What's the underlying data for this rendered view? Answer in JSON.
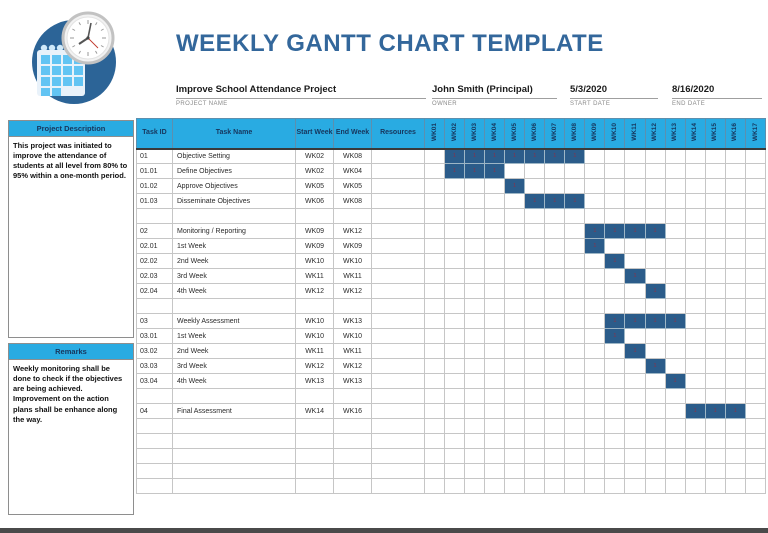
{
  "header": {
    "title": "WEEKLY GANTT CHART TEMPLATE",
    "logo": "calendar-clock-logo"
  },
  "project_info": {
    "name": {
      "value": "Improve School Attendance Project",
      "label": "PROJECT NAME"
    },
    "owner": {
      "value": "John Smith (Principal)",
      "label": "OWNER"
    },
    "start": {
      "value": "5/3/2020",
      "label": "START DATE"
    },
    "end": {
      "value": "8/16/2020",
      "label": "END DATE"
    }
  },
  "sidebar": {
    "description": {
      "title": "Project Description",
      "body": "This project was initiated to improve the attendance of students at all level from 80% to 95% within a one-month period."
    },
    "remarks": {
      "title": "Remarks",
      "body": "Weekly monitoring shall be done to check if the objectives are being achieved.\nImprovement on the action plans shall be enhance along the way."
    }
  },
  "table": {
    "headers": [
      "Task ID",
      "Task Name",
      "Start Week",
      "End Week",
      "Resources"
    ],
    "week_headers": [
      "WK01",
      "WK02",
      "WK03",
      "WK04",
      "WK05",
      "WK06",
      "WK07",
      "WK08",
      "WK09",
      "WK10",
      "WK11",
      "WK12",
      "WK13",
      "WK14",
      "WK15",
      "WK16",
      "WK17"
    ],
    "gantt_cell_value": "1",
    "rows": [
      {
        "id": "01",
        "name": "Objective Setting",
        "start": "WK02",
        "end": "WK08",
        "resources": "",
        "weeks": [
          2,
          3,
          4,
          5,
          6,
          7,
          8
        ]
      },
      {
        "id": "01.01",
        "name": "Define Objectives",
        "start": "WK02",
        "end": "WK04",
        "resources": "",
        "weeks": [
          2,
          3,
          4
        ]
      },
      {
        "id": "01.02",
        "name": "Approve Objectives",
        "start": "WK05",
        "end": "WK05",
        "resources": "",
        "weeks": [
          5
        ]
      },
      {
        "id": "01.03",
        "name": "Disseminate Objectives",
        "start": "WK06",
        "end": "WK08",
        "resources": "",
        "weeks": [
          6,
          7,
          8
        ]
      },
      {
        "id": "",
        "name": "",
        "start": "",
        "end": "",
        "resources": "",
        "weeks": []
      },
      {
        "id": "02",
        "name": "Monitoring / Reporting",
        "start": "WK09",
        "end": "WK12",
        "resources": "",
        "weeks": [
          9,
          10,
          11,
          12
        ]
      },
      {
        "id": "02.01",
        "name": "1st Week",
        "start": "WK09",
        "end": "WK09",
        "resources": "",
        "weeks": [
          9
        ]
      },
      {
        "id": "02.02",
        "name": "2nd Week",
        "start": "WK10",
        "end": "WK10",
        "resources": "",
        "weeks": [
          10
        ]
      },
      {
        "id": "02.03",
        "name": "3rd Week",
        "start": "WK11",
        "end": "WK11",
        "resources": "",
        "weeks": [
          11
        ]
      },
      {
        "id": "02.04",
        "name": "4th Week",
        "start": "WK12",
        "end": "WK12",
        "resources": "",
        "weeks": [
          12
        ]
      },
      {
        "id": "",
        "name": "",
        "start": "",
        "end": "",
        "resources": "",
        "weeks": []
      },
      {
        "id": "03",
        "name": "Weekly Assessment",
        "start": "WK10",
        "end": "WK13",
        "resources": "",
        "weeks": [
          10,
          11,
          12,
          13
        ]
      },
      {
        "id": "03.01",
        "name": "1st Week",
        "start": "WK10",
        "end": "WK10",
        "resources": "",
        "weeks": [
          10
        ]
      },
      {
        "id": "03.02",
        "name": "2nd Week",
        "start": "WK11",
        "end": "WK11",
        "resources": "",
        "weeks": [
          11
        ]
      },
      {
        "id": "03.03",
        "name": "3rd Week",
        "start": "WK12",
        "end": "WK12",
        "resources": "",
        "weeks": [
          12
        ]
      },
      {
        "id": "03.04",
        "name": "4th Week",
        "start": "WK13",
        "end": "WK13",
        "resources": "",
        "weeks": [
          13
        ]
      },
      {
        "id": "",
        "name": "",
        "start": "",
        "end": "",
        "resources": "",
        "weeks": []
      },
      {
        "id": "04",
        "name": "Final Assessment",
        "start": "WK14",
        "end": "WK16",
        "resources": "",
        "weeks": [
          14,
          15,
          16
        ]
      },
      {
        "id": "",
        "name": "",
        "start": "",
        "end": "",
        "resources": "",
        "weeks": []
      },
      {
        "id": "",
        "name": "",
        "start": "",
        "end": "",
        "resources": "",
        "weeks": []
      },
      {
        "id": "",
        "name": "",
        "start": "",
        "end": "",
        "resources": "",
        "weeks": []
      },
      {
        "id": "",
        "name": "",
        "start": "",
        "end": "",
        "resources": "",
        "weeks": []
      },
      {
        "id": "",
        "name": "",
        "start": "",
        "end": "",
        "resources": "",
        "weeks": []
      }
    ]
  },
  "colors": {
    "accent_cyan": "#29ABE2",
    "gantt_fill": "#2B5C8A",
    "title_blue": "#33679B",
    "header_text_navy": "#17365D",
    "gantt_cell_mark": "#8A3148"
  },
  "chart_data": {
    "type": "bar",
    "subtype": "gantt",
    "title": "WEEKLY GANTT CHART TEMPLATE",
    "x_categories": [
      "WK01",
      "WK02",
      "WK03",
      "WK04",
      "WK05",
      "WK06",
      "WK07",
      "WK08",
      "WK09",
      "WK10",
      "WK11",
      "WK12",
      "WK13",
      "WK14",
      "WK15",
      "WK16",
      "WK17"
    ],
    "x_range": [
      1,
      17
    ],
    "grid": true,
    "legend": false,
    "tasks": [
      {
        "id": "01",
        "name": "Objective Setting",
        "start_week": 2,
        "end_week": 8
      },
      {
        "id": "01.01",
        "name": "Define Objectives",
        "start_week": 2,
        "end_week": 4
      },
      {
        "id": "01.02",
        "name": "Approve Objectives",
        "start_week": 5,
        "end_week": 5
      },
      {
        "id": "01.03",
        "name": "Disseminate Objectives",
        "start_week": 6,
        "end_week": 8
      },
      {
        "id": "02",
        "name": "Monitoring / Reporting",
        "start_week": 9,
        "end_week": 12
      },
      {
        "id": "02.01",
        "name": "1st Week",
        "start_week": 9,
        "end_week": 9
      },
      {
        "id": "02.02",
        "name": "2nd Week",
        "start_week": 10,
        "end_week": 10
      },
      {
        "id": "02.03",
        "name": "3rd Week",
        "start_week": 11,
        "end_week": 11
      },
      {
        "id": "02.04",
        "name": "4th Week",
        "start_week": 12,
        "end_week": 12
      },
      {
        "id": "03",
        "name": "Weekly Assessment",
        "start_week": 10,
        "end_week": 13
      },
      {
        "id": "03.01",
        "name": "1st Week",
        "start_week": 10,
        "end_week": 10
      },
      {
        "id": "03.02",
        "name": "2nd Week",
        "start_week": 11,
        "end_week": 11
      },
      {
        "id": "03.03",
        "name": "3rd Week",
        "start_week": 12,
        "end_week": 12
      },
      {
        "id": "03.04",
        "name": "4th Week",
        "start_week": 13,
        "end_week": 13
      },
      {
        "id": "04",
        "name": "Final Assessment",
        "start_week": 14,
        "end_week": 16
      }
    ]
  }
}
